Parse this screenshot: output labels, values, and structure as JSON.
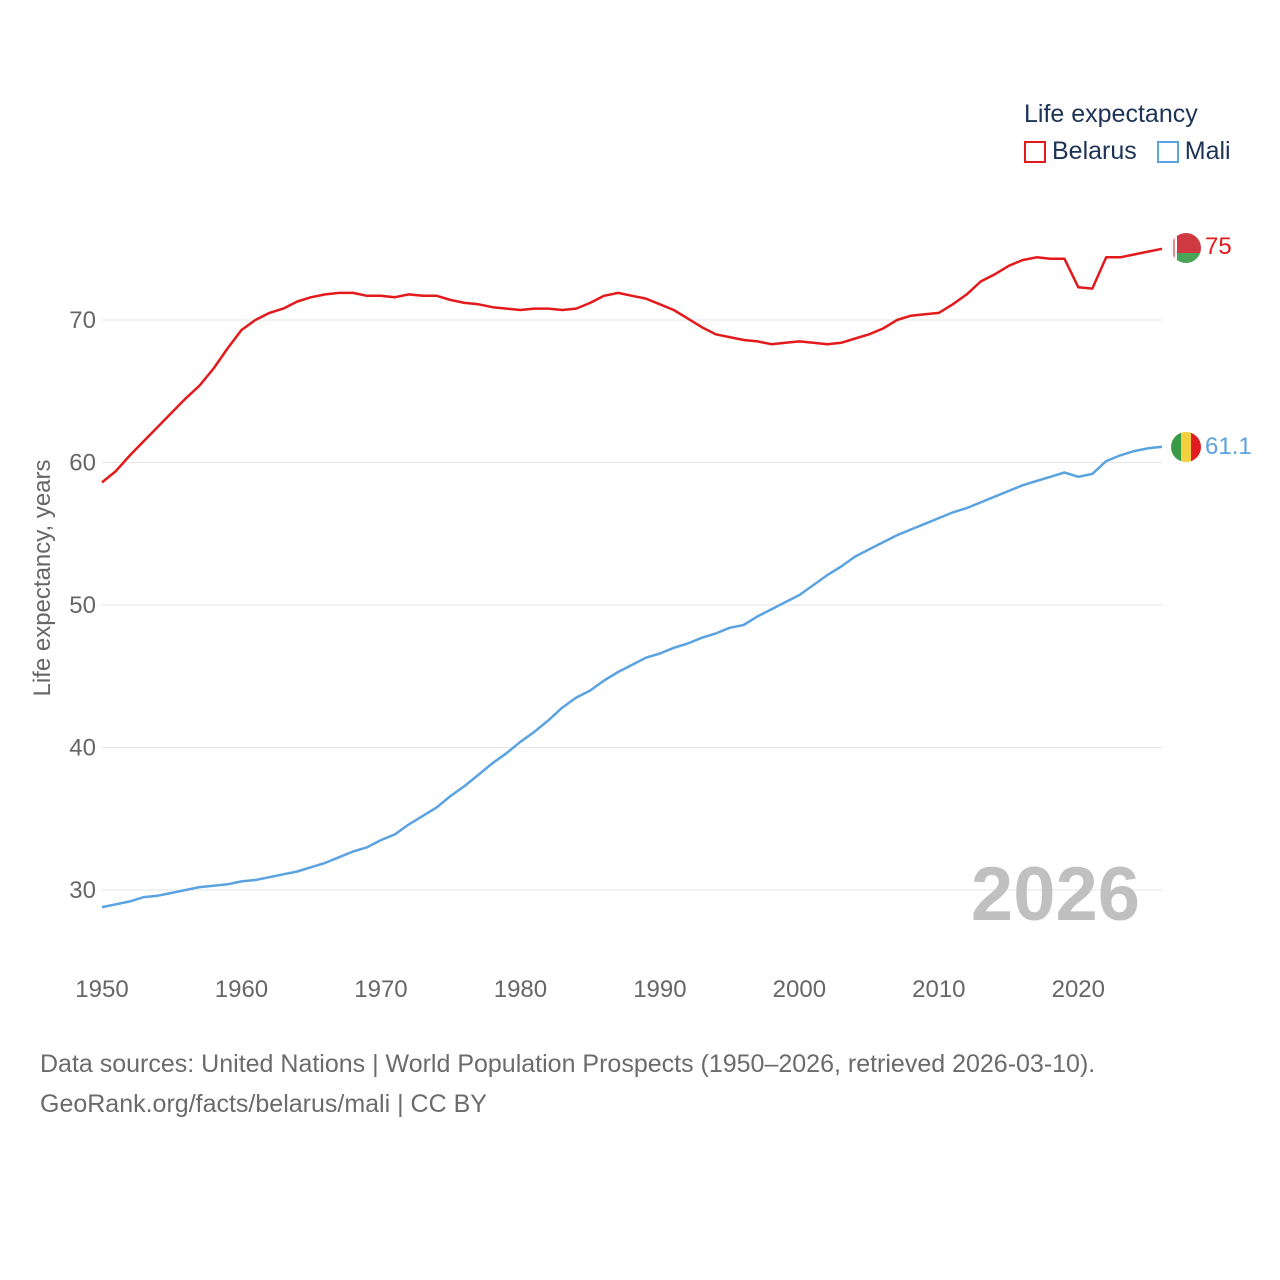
{
  "chart_data": {
    "type": "line",
    "title": "Life expectancy",
    "ylabel": "Life expectancy, years",
    "xlabel": "",
    "xlim": [
      1950,
      2026
    ],
    "ylim": [
      25,
      77
    ],
    "xticks": [
      1950,
      1960,
      1970,
      1980,
      1990,
      2000,
      2010,
      2020
    ],
    "yticks": [
      30,
      40,
      50,
      60,
      70
    ],
    "year_label": "2026",
    "series": [
      {
        "name": "Belarus",
        "color": "#e31a1c",
        "end_label": "75",
        "x": [
          1950,
          1951,
          1952,
          1953,
          1954,
          1955,
          1956,
          1957,
          1958,
          1959,
          1960,
          1961,
          1962,
          1963,
          1964,
          1965,
          1966,
          1967,
          1968,
          1969,
          1970,
          1971,
          1972,
          1973,
          1974,
          1975,
          1976,
          1977,
          1978,
          1979,
          1980,
          1981,
          1982,
          1983,
          1984,
          1985,
          1986,
          1987,
          1988,
          1989,
          1990,
          1991,
          1992,
          1993,
          1994,
          1995,
          1996,
          1997,
          1998,
          1999,
          2000,
          2001,
          2002,
          2003,
          2004,
          2005,
          2006,
          2007,
          2008,
          2009,
          2010,
          2011,
          2012,
          2013,
          2014,
          2015,
          2016,
          2017,
          2018,
          2019,
          2020,
          2021,
          2022,
          2023,
          2024,
          2025,
          2026
        ],
        "y": [
          58.6,
          59.4,
          60.5,
          61.5,
          62.5,
          63.5,
          64.5,
          65.4,
          66.6,
          68.0,
          69.3,
          70.0,
          70.5,
          70.8,
          71.3,
          71.6,
          71.8,
          71.9,
          71.9,
          71.7,
          71.7,
          71.6,
          71.8,
          71.7,
          71.7,
          71.4,
          71.2,
          71.1,
          70.9,
          70.8,
          70.7,
          70.8,
          70.8,
          70.7,
          70.8,
          71.2,
          71.7,
          71.9,
          71.7,
          71.5,
          71.1,
          70.7,
          70.1,
          69.5,
          69.0,
          68.8,
          68.6,
          68.5,
          68.3,
          68.4,
          68.5,
          68.4,
          68.3,
          68.4,
          68.7,
          69.0,
          69.4,
          70.0,
          70.3,
          70.4,
          70.5,
          71.1,
          71.8,
          72.7,
          73.2,
          73.8,
          74.2,
          74.4,
          74.3,
          74.3,
          72.3,
          72.2,
          74.4,
          74.4,
          74.6,
          74.8,
          75.0
        ]
      },
      {
        "name": "Mali",
        "color": "#5ba3e0",
        "end_label": "61.1",
        "x": [
          1950,
          1951,
          1952,
          1953,
          1954,
          1955,
          1956,
          1957,
          1958,
          1959,
          1960,
          1961,
          1962,
          1963,
          1964,
          1965,
          1966,
          1967,
          1968,
          1969,
          1970,
          1971,
          1972,
          1973,
          1974,
          1975,
          1976,
          1977,
          1978,
          1979,
          1980,
          1981,
          1982,
          1983,
          1984,
          1985,
          1986,
          1987,
          1988,
          1989,
          1990,
          1991,
          1992,
          1993,
          1994,
          1995,
          1996,
          1997,
          1998,
          1999,
          2000,
          2001,
          2002,
          2003,
          2004,
          2005,
          2006,
          2007,
          2008,
          2009,
          2010,
          2011,
          2012,
          2013,
          2014,
          2015,
          2016,
          2017,
          2018,
          2019,
          2020,
          2021,
          2022,
          2023,
          2024,
          2025,
          2026
        ],
        "y": [
          28.8,
          29.0,
          29.2,
          29.5,
          29.6,
          29.8,
          30.0,
          30.2,
          30.3,
          30.4,
          30.6,
          30.7,
          30.9,
          31.1,
          31.3,
          31.6,
          31.9,
          32.3,
          32.7,
          33.0,
          33.5,
          33.9,
          34.6,
          35.2,
          35.8,
          36.6,
          37.3,
          38.1,
          38.9,
          39.6,
          40.4,
          41.1,
          41.9,
          42.8,
          43.5,
          44.0,
          44.7,
          45.3,
          45.8,
          46.3,
          46.6,
          47.0,
          47.3,
          47.7,
          48.0,
          48.4,
          48.6,
          49.2,
          49.7,
          50.2,
          50.7,
          51.4,
          52.1,
          52.7,
          53.4,
          53.9,
          54.4,
          54.9,
          55.3,
          55.7,
          56.1,
          56.5,
          56.8,
          57.2,
          57.6,
          58.0,
          58.4,
          58.7,
          59.0,
          59.3,
          59.0,
          59.2,
          60.1,
          60.5,
          60.8,
          61.0,
          61.1
        ]
      }
    ]
  },
  "legend": {
    "title": "Life expectancy",
    "items": [
      "Belarus",
      "Mali"
    ]
  },
  "source": {
    "line1": "Data sources: United Nations | World Population Prospects (1950–2026, retrieved 2026-03-10).",
    "line2": "GeoRank.org/facts/belarus/mali | CC BY"
  },
  "flags": {
    "belarus": "belarus-flag-icon",
    "mali": "mali-flag-icon"
  }
}
